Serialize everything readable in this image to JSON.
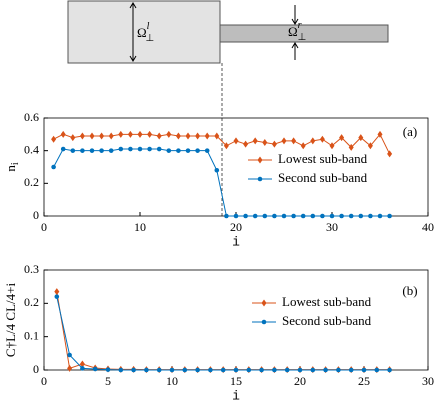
{
  "diagram": {
    "left": {
      "symbol": "Ω",
      "sub": "⊥",
      "sup": "l"
    },
    "right": {
      "symbol": "Ω",
      "sub": "⊥",
      "sup": "r"
    }
  },
  "chart_data": [
    {
      "type": "line",
      "panel_label": "(a)",
      "x_label": "i",
      "y_label": "n",
      "y_label_sub": "i",
      "x": [
        1,
        2,
        3,
        4,
        5,
        6,
        7,
        8,
        9,
        10,
        11,
        12,
        13,
        14,
        15,
        16,
        17,
        18,
        19,
        20,
        21,
        22,
        23,
        24,
        25,
        26,
        27,
        28,
        29,
        30,
        31,
        32,
        33,
        34,
        35,
        36
      ],
      "series": [
        {
          "name": "Lowest sub-band",
          "color": "#d95319",
          "marker": "diamond",
          "values": [
            0.47,
            0.5,
            0.48,
            0.49,
            0.49,
            0.49,
            0.49,
            0.5,
            0.5,
            0.5,
            0.5,
            0.49,
            0.5,
            0.49,
            0.49,
            0.49,
            0.49,
            0.49,
            0.43,
            0.46,
            0.44,
            0.46,
            0.45,
            0.44,
            0.46,
            0.46,
            0.43,
            0.46,
            0.47,
            0.43,
            0.48,
            0.42,
            0.48,
            0.43,
            0.5,
            0.38
          ]
        },
        {
          "name": "Second sub-band",
          "color": "#0072bd",
          "marker": "circle",
          "values": [
            0.3,
            0.41,
            0.4,
            0.4,
            0.4,
            0.4,
            0.4,
            0.41,
            0.41,
            0.41,
            0.41,
            0.41,
            0.4,
            0.4,
            0.4,
            0.4,
            0.4,
            0.28,
            0,
            0,
            0,
            0,
            0,
            0,
            0,
            0,
            0,
            0,
            0,
            0,
            0,
            0,
            0,
            0,
            0,
            0
          ]
        }
      ],
      "xlim": [
        0,
        40
      ],
      "xticks": [
        0,
        10,
        20,
        30,
        40
      ],
      "ylim": [
        0,
        0.6
      ],
      "yticks": [
        0,
        0.2,
        0.4,
        0.6
      ]
    },
    {
      "type": "line",
      "panel_label": "(b)",
      "x_label": "i",
      "y_label": "C†L/4 CL/4+i",
      "x": [
        1,
        2,
        3,
        4,
        5,
        6,
        7,
        8,
        9,
        10,
        11,
        12,
        13,
        14,
        15,
        16,
        17,
        18,
        19,
        20,
        21,
        22,
        23,
        24,
        25,
        26,
        27
      ],
      "series": [
        {
          "name": "Lowest sub-band",
          "color": "#d95319",
          "marker": "diamond",
          "values": [
            0.235,
            0.005,
            0.018,
            0.006,
            0.003,
            0.002,
            0.002,
            0.001,
            0.001,
            0.001,
            0.001,
            0.001,
            0.001,
            0.001,
            0.001,
            0.001,
            0.001,
            0.001,
            0.001,
            0.001,
            0.001,
            0.001,
            0.001,
            0.001,
            0.001,
            0.001,
            0.001
          ]
        },
        {
          "name": "Second sub-band",
          "color": "#0072bd",
          "marker": "circle",
          "values": [
            0.22,
            0.045,
            0.005,
            0.003,
            0.001,
            0,
            0,
            0,
            0,
            0,
            0,
            0,
            0,
            0,
            0,
            0,
            0,
            0,
            0,
            0,
            0,
            0,
            0,
            0,
            0,
            0,
            0
          ]
        }
      ],
      "xlim": [
        0,
        30
      ],
      "xticks": [
        0,
        5,
        10,
        15,
        20,
        25,
        30
      ],
      "ylim": [
        0,
        0.3
      ],
      "yticks": [
        0,
        0.1,
        0.2,
        0.3
      ]
    }
  ]
}
